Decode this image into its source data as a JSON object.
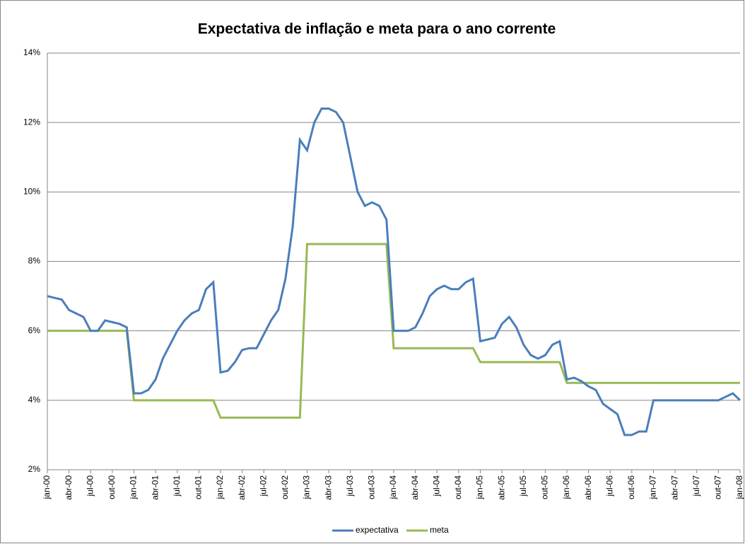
{
  "chart_data": {
    "type": "line",
    "title": "Expectativa de inflação e meta para o ano corrente",
    "categories": [
      "jan-00",
      null,
      null,
      "abr-00",
      null,
      null,
      "jul-00",
      null,
      null,
      "out-00",
      null,
      null,
      "jan-01",
      null,
      null,
      "abr-01",
      null,
      null,
      "jul-01",
      null,
      null,
      "out-01",
      null,
      null,
      "jan-02",
      null,
      null,
      "abr-02",
      null,
      null,
      "jul-02",
      null,
      null,
      "out-02",
      null,
      null,
      "jan-03",
      null,
      null,
      "abr-03",
      null,
      null,
      "jul-03",
      null,
      null,
      "out-03",
      null,
      null,
      "jan-04",
      null,
      null,
      "abr-04",
      null,
      null,
      "jul-04",
      null,
      null,
      "out-04",
      null,
      null,
      "jan-05",
      null,
      null,
      "abr-05",
      null,
      null,
      "jul-05",
      null,
      null,
      "out-05",
      null,
      null,
      "jan-06",
      null,
      null,
      "abr-06",
      null,
      null,
      "jul-06",
      null,
      null,
      "out-06",
      null,
      null,
      "jan-07",
      null,
      null,
      "abr-07",
      null,
      null,
      "jul-07",
      null,
      null,
      "out-07",
      null,
      null,
      "jan-08"
    ],
    "series": [
      {
        "name": "expectativa",
        "color": "#4a7ebb",
        "values": [
          7.0,
          6.95,
          6.9,
          6.6,
          6.5,
          6.4,
          6.0,
          6.0,
          6.3,
          6.25,
          6.2,
          6.1,
          4.2,
          4.2,
          4.3,
          4.6,
          5.2,
          5.6,
          6.0,
          6.3,
          6.5,
          6.6,
          7.2,
          7.4,
          4.8,
          4.85,
          5.1,
          5.45,
          5.5,
          5.5,
          5.9,
          6.3,
          6.6,
          7.5,
          9.0,
          11.5,
          11.2,
          12.0,
          12.4,
          12.4,
          12.3,
          12.0,
          11.0,
          10.0,
          9.6,
          9.7,
          9.6,
          9.2,
          6.0,
          6.0,
          6.0,
          6.1,
          6.5,
          7.0,
          7.2,
          7.3,
          7.2,
          7.2,
          7.4,
          7.5,
          5.7,
          5.75,
          5.8,
          6.2,
          6.4,
          6.1,
          5.6,
          5.3,
          5.2,
          5.3,
          5.6,
          5.7,
          4.6,
          4.65,
          4.55,
          4.4,
          4.3,
          3.9,
          3.75,
          3.6,
          3.0,
          3.0,
          3.1,
          3.1,
          4.0,
          4.0,
          4.0,
          4.0,
          4.0,
          4.0,
          4.0,
          4.0,
          4.0,
          4.0,
          4.1,
          4.2,
          4.0
        ]
      },
      {
        "name": "meta",
        "color": "#98b954",
        "values": [
          6,
          6,
          6,
          6,
          6,
          6,
          6,
          6,
          6,
          6,
          6,
          6,
          4,
          4,
          4,
          4,
          4,
          4,
          4,
          4,
          4,
          4,
          4,
          4,
          3.5,
          3.5,
          3.5,
          3.5,
          3.5,
          3.5,
          3.5,
          3.5,
          3.5,
          3.5,
          3.5,
          3.5,
          8.5,
          8.5,
          8.5,
          8.5,
          8.5,
          8.5,
          8.5,
          8.5,
          8.5,
          8.5,
          8.5,
          8.5,
          5.5,
          5.5,
          5.5,
          5.5,
          5.5,
          5.5,
          5.5,
          5.5,
          5.5,
          5.5,
          5.5,
          5.5,
          5.1,
          5.1,
          5.1,
          5.1,
          5.1,
          5.1,
          5.1,
          5.1,
          5.1,
          5.1,
          5.1,
          5.1,
          4.5,
          4.5,
          4.5,
          4.5,
          4.5,
          4.5,
          4.5,
          4.5,
          4.5,
          4.5,
          4.5,
          4.5,
          4.5,
          4.5,
          4.5,
          4.5,
          4.5,
          4.5,
          4.5,
          4.5,
          4.5,
          4.5,
          4.5,
          4.5,
          4.5
        ]
      }
    ],
    "ylim": [
      2,
      14
    ],
    "yticks": [
      {
        "value": 2,
        "label": "2%"
      },
      {
        "value": 4,
        "label": "4%"
      },
      {
        "value": 6,
        "label": "6%"
      },
      {
        "value": 8,
        "label": "8%"
      },
      {
        "value": 10,
        "label": "10%"
      },
      {
        "value": 12,
        "label": "12%"
      },
      {
        "value": 14,
        "label": "14%"
      }
    ],
    "grid": true,
    "legend": "bottom"
  }
}
